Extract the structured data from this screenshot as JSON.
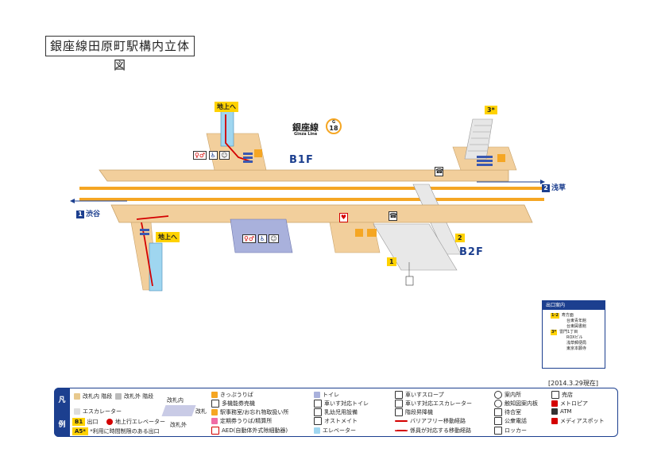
{
  "title": "銀座線田原町駅構内立体図",
  "line": {
    "name": "銀座線",
    "name_en": "Ginza Line",
    "code": "G",
    "number": "18"
  },
  "floors": {
    "b1": "B1F",
    "b2": "B2F"
  },
  "directions": {
    "east": {
      "num": "2",
      "label": "浅草"
    },
    "west": {
      "num": "1",
      "label": "渋谷"
    }
  },
  "exits_on_map": {
    "to_ground_top": "地上へ",
    "to_ground_bottom": "地上へ",
    "exit_3": "3*",
    "exit_2": "2",
    "exit_1": "1"
  },
  "exit_panel": {
    "heading": "出口案内",
    "rows": [
      {
        "code": "1·2",
        "lines": [
          "寿方面",
          "台東青年館",
          "台東図書館"
        ]
      },
      {
        "code": "3*",
        "lines": [
          "雷門1丁目",
          "ROXビル",
          "浅草郵便局",
          "東京本願寺"
        ]
      }
    ]
  },
  "date": "[2014.3.29現在]",
  "legend": {
    "side_label": [
      "凡",
      "例"
    ],
    "col1": [
      {
        "icon": "stairs-inside-icon",
        "text": "改札内 階段"
      },
      {
        "icon": "stairs-outside-icon",
        "text": "改札外 階段"
      },
      {
        "icon": "escalator-icon",
        "text": "エスカレーター"
      },
      {
        "code": "B1",
        "text": "出口"
      },
      {
        "icon": "ground-elevator-icon",
        "text": "地上行エレベーター"
      },
      {
        "code": "A5*",
        "text": "*利用に時間制限のある出口"
      }
    ],
    "gate": {
      "inside": "改札内",
      "label": "改札",
      "outside": "改札外"
    },
    "col3": [
      {
        "icon": "ticket-icon",
        "text": "きっぷうりば"
      },
      {
        "icon": "machine-icon",
        "text": "多機能券売機"
      },
      {
        "icon": "office-icon",
        "text": "駅事務室/お忘れ物取扱い所"
      },
      {
        "icon": "pass-icon",
        "text": "定期券うりば/精算所"
      },
      {
        "icon": "aed-icon",
        "text": "AED(自動体外式除細動器)"
      }
    ],
    "col4": [
      {
        "icon": "toilet-icon",
        "text": "トイレ"
      },
      {
        "icon": "accessible-toilet-icon",
        "text": "車いす対応トイレ"
      },
      {
        "icon": "baby-icon",
        "text": "乳幼児用設備"
      },
      {
        "icon": "ostomate-icon",
        "text": "オストメイト"
      },
      {
        "icon": "elevator-icon",
        "text": "エレベーター"
      }
    ],
    "col5": [
      {
        "icon": "slope-icon",
        "text": "車いすスロープ"
      },
      {
        "icon": "wheelchair-escalator-icon",
        "text": "車いす対応エスカレーター"
      },
      {
        "icon": "stair-lift-icon",
        "text": "階段昇降機"
      },
      {
        "icon": "barrier-free-route-icon",
        "text": "バリアフリー移動経路"
      },
      {
        "icon": "staff-route-icon",
        "text": "係員が対応する移動経路"
      }
    ],
    "col6": [
      {
        "icon": "info-icon",
        "text": "案内所"
      },
      {
        "icon": "tactile-map-icon",
        "text": "触知図案内板"
      },
      {
        "icon": "waiting-room-icon",
        "text": "待合室"
      },
      {
        "icon": "phone-icon",
        "text": "公衆電話"
      },
      {
        "icon": "locker-icon",
        "text": "ロッカー"
      }
    ],
    "col7": [
      {
        "icon": "shop-icon",
        "text": "売店"
      },
      {
        "icon": "metropia-icon",
        "text": "メトロピア"
      },
      {
        "icon": "atm-icon",
        "text": "ATM"
      },
      {
        "icon": "media-spot-icon",
        "text": "メディアスポット"
      }
    ]
  },
  "colors": {
    "navy": "#1c3f8f",
    "floor": "#f2cf9c",
    "track": "#f5a623",
    "accent": "#ffd200",
    "route": "#d40000",
    "gray": "#c9cbe6"
  }
}
